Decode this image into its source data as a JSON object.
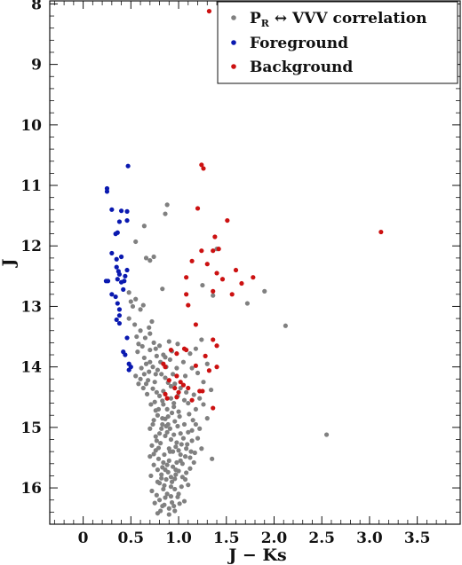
{
  "chart_data": {
    "type": "scatter",
    "xlabel": "J − Ks",
    "ylabel": "J",
    "xlim": [
      -0.35,
      3.95
    ],
    "ylim": [
      16.6,
      7.95
    ],
    "y_inverted": true,
    "x_ticks": [
      "0",
      "0.5",
      "1.0",
      "1.5",
      "2.0",
      "2.5",
      "3.0",
      "3.5"
    ],
    "x_tick_values": [
      0,
      0.5,
      1.0,
      1.5,
      2.0,
      2.5,
      3.0,
      3.5
    ],
    "y_ticks": [
      "8",
      "9",
      "10",
      "11",
      "12",
      "13",
      "14",
      "15",
      "16"
    ],
    "y_tick_values": [
      8,
      9,
      10,
      11,
      12,
      13,
      14,
      15,
      16
    ],
    "legend_position": "top-right",
    "series": [
      {
        "name": "P_R ↔ VVV correlation",
        "name_main": "P",
        "name_sub": "R",
        "name_rest": " ↔ VVV correlation",
        "color": "#808080",
        "points": [
          [
            0.88,
            11.32
          ],
          [
            0.86,
            11.47
          ],
          [
            0.64,
            11.67
          ],
          [
            0.55,
            11.93
          ],
          [
            0.66,
            12.2
          ],
          [
            0.74,
            12.18
          ],
          [
            0.7,
            12.24
          ],
          [
            0.83,
            12.71
          ],
          [
            0.48,
            12.77
          ],
          [
            0.55,
            12.88
          ],
          [
            0.52,
            13.0
          ],
          [
            0.6,
            13.05
          ],
          [
            0.48,
            13.2
          ],
          [
            0.72,
            13.25
          ],
          [
            0.69,
            13.35
          ],
          [
            0.56,
            13.5
          ],
          [
            0.58,
            13.62
          ],
          [
            0.62,
            13.66
          ],
          [
            0.7,
            13.72
          ],
          [
            0.74,
            13.6
          ],
          [
            0.76,
            13.7
          ],
          [
            0.8,
            13.65
          ],
          [
            0.84,
            13.8
          ],
          [
            0.64,
            13.85
          ],
          [
            0.7,
            13.92
          ],
          [
            0.73,
            14.0
          ],
          [
            0.78,
            14.05
          ],
          [
            0.82,
            14.12
          ],
          [
            0.55,
            14.15
          ],
          [
            0.6,
            14.2
          ],
          [
            0.66,
            14.28
          ],
          [
            0.75,
            14.25
          ],
          [
            0.92,
            14.32
          ],
          [
            1.02,
            14.35
          ],
          [
            1.08,
            14.42
          ],
          [
            0.8,
            14.48
          ],
          [
            0.83,
            14.56
          ],
          [
            1.1,
            14.6
          ],
          [
            1.18,
            14.7
          ],
          [
            1.24,
            13.55
          ],
          [
            1.12,
            13.78
          ],
          [
            1.3,
            13.95
          ],
          [
            1.14,
            14.02
          ],
          [
            1.26,
            14.25
          ],
          [
            1.34,
            14.38
          ],
          [
            0.88,
            14.7
          ],
          [
            0.95,
            14.66
          ],
          [
            1.0,
            14.74
          ],
          [
            1.35,
            15.52
          ],
          [
            1.4,
            12.05
          ],
          [
            1.25,
            12.65
          ],
          [
            1.36,
            12.82
          ],
          [
            1.72,
            12.95
          ],
          [
            1.9,
            12.75
          ],
          [
            2.12,
            13.32
          ],
          [
            2.55,
            15.12
          ],
          [
            1.06,
            14.55
          ],
          [
            0.92,
            14.52
          ],
          [
            0.99,
            14.48
          ],
          [
            1.16,
            14.46
          ],
          [
            1.22,
            14.52
          ],
          [
            0.73,
            14.36
          ],
          [
            0.68,
            14.22
          ],
          [
            0.64,
            14.12
          ],
          [
            0.69,
            14.08
          ],
          [
            0.86,
            14.18
          ],
          [
            0.96,
            14.28
          ],
          [
            0.94,
            14.12
          ],
          [
            0.98,
            14.02
          ],
          [
            1.05,
            13.92
          ],
          [
            0.91,
            13.88
          ],
          [
            0.87,
            14.0
          ],
          [
            1.07,
            14.15
          ],
          [
            0.9,
            13.58
          ],
          [
            0.99,
            13.62
          ],
          [
            1.18,
            13.7
          ],
          [
            1.2,
            14.1
          ],
          [
            1.26,
            14.62
          ],
          [
            1.15,
            14.88
          ],
          [
            1.22,
            15.02
          ],
          [
            1.3,
            14.85
          ],
          [
            1.24,
            15.35
          ],
          [
            1.17,
            15.42
          ],
          [
            1.12,
            15.68
          ],
          [
            1.1,
            15.95
          ],
          [
            1.06,
            16.22
          ],
          [
            1.0,
            16.1
          ],
          [
            0.95,
            16.3
          ],
          [
            0.9,
            16.34
          ],
          [
            0.85,
            16.28
          ],
          [
            0.8,
            16.2
          ],
          [
            0.75,
            16.25
          ],
          [
            0.72,
            16.05
          ],
          [
            0.78,
            15.9
          ],
          [
            0.82,
            15.78
          ],
          [
            0.74,
            15.62
          ],
          [
            0.7,
            15.48
          ],
          [
            0.72,
            15.3
          ],
          [
            0.76,
            15.15
          ],
          [
            0.7,
            15.02
          ],
          [
            0.74,
            14.88
          ],
          [
            0.78,
            14.8
          ],
          [
            0.83,
            14.95
          ],
          [
            0.88,
            15.08
          ],
          [
            0.92,
            15.2
          ],
          [
            0.97,
            15.32
          ],
          [
            1.02,
            15.45
          ],
          [
            1.04,
            15.6
          ],
          [
            1.0,
            15.72
          ],
          [
            0.96,
            15.85
          ],
          [
            0.92,
            15.98
          ],
          [
            0.88,
            16.1
          ],
          [
            0.84,
            16.02
          ],
          [
            0.8,
            15.92
          ],
          [
            0.86,
            15.7
          ],
          [
            0.9,
            15.55
          ],
          [
            0.94,
            15.4
          ],
          [
            0.98,
            15.25
          ],
          [
            1.02,
            15.1
          ],
          [
            1.06,
            14.95
          ],
          [
            1.1,
            15.08
          ],
          [
            1.14,
            15.22
          ],
          [
            1.08,
            15.35
          ],
          [
            1.04,
            15.82
          ],
          [
            0.99,
            16.15
          ],
          [
            0.93,
            16.24
          ],
          [
            0.87,
            15.86
          ],
          [
            0.83,
            15.66
          ],
          [
            0.79,
            15.52
          ],
          [
            0.76,
            15.38
          ],
          [
            0.81,
            15.26
          ],
          [
            0.86,
            15.14
          ],
          [
            0.91,
            15.02
          ],
          [
            0.96,
            14.9
          ],
          [
            1.01,
            14.82
          ],
          [
            0.89,
            14.82
          ],
          [
            0.84,
            14.62
          ],
          [
            0.79,
            14.7
          ],
          [
            0.75,
            14.58
          ],
          [
            0.98,
            15.58
          ],
          [
            1.08,
            15.75
          ],
          [
            1.12,
            15.5
          ],
          [
            1.16,
            15.58
          ],
          [
            1.2,
            15.18
          ],
          [
            0.71,
            15.8
          ],
          [
            0.77,
            16.12
          ],
          [
            0.81,
            16.38
          ],
          [
            0.94,
            15.65
          ],
          [
            0.9,
            15.35
          ],
          [
            0.85,
            15.45
          ],
          [
            0.8,
            15.1
          ],
          [
            0.87,
            14.98
          ],
          [
            0.93,
            14.76
          ],
          [
            0.99,
            14.98
          ],
          [
            1.03,
            15.28
          ],
          [
            1.07,
            15.48
          ],
          [
            0.97,
            15.78
          ],
          [
            0.93,
            15.9
          ],
          [
            0.89,
            15.74
          ],
          [
            0.85,
            15.96
          ],
          [
            0.82,
            15.84
          ],
          [
            0.78,
            15.7
          ],
          [
            0.74,
            15.44
          ],
          [
            0.77,
            15.22
          ],
          [
            0.82,
            15.02
          ],
          [
            0.86,
            14.86
          ],
          [
            0.91,
            15.4
          ],
          [
            0.95,
            15.12
          ],
          [
            1.0,
            15.38
          ],
          [
            1.05,
            15.18
          ],
          [
            1.09,
            15.28
          ],
          [
            1.13,
            15.4
          ],
          [
            0.96,
            16.02
          ],
          [
            1.01,
            16.26
          ],
          [
            0.92,
            16.14
          ],
          [
            0.86,
            16.16
          ],
          [
            0.83,
            16.3
          ],
          [
            0.78,
            16.42
          ],
          [
            0.9,
            16.44
          ],
          [
            0.96,
            16.38
          ],
          [
            1.03,
            15.98
          ],
          [
            1.07,
            15.86
          ],
          [
            0.73,
            14.95
          ],
          [
            0.79,
            15.34
          ],
          [
            0.84,
            15.58
          ],
          [
            0.88,
            15.62
          ],
          [
            0.92,
            15.82
          ],
          [
            0.97,
            15.7
          ],
          [
            1.02,
            15.55
          ],
          [
            0.76,
            14.72
          ],
          [
            0.83,
            14.85
          ],
          [
            0.95,
            14.6
          ],
          [
            0.89,
            14.95
          ],
          [
            1.14,
            15.05
          ],
          [
            1.18,
            14.95
          ],
          [
            1.11,
            14.78
          ],
          [
            0.67,
            14.45
          ],
          [
            0.71,
            14.62
          ],
          [
            0.63,
            14.35
          ],
          [
            0.58,
            14.28
          ],
          [
            0.77,
            14.42
          ],
          [
            0.84,
            14.4
          ],
          [
            0.89,
            14.26
          ],
          [
            0.76,
            14.12
          ],
          [
            0.81,
            13.92
          ],
          [
            0.86,
            13.84
          ],
          [
            0.93,
            13.74
          ],
          [
            0.77,
            13.82
          ],
          [
            0.66,
            13.95
          ],
          [
            0.61,
            14.02
          ],
          [
            0.57,
            13.75
          ],
          [
            0.65,
            13.52
          ],
          [
            0.7,
            13.45
          ],
          [
            0.6,
            13.4
          ],
          [
            0.54,
            13.3
          ],
          [
            0.5,
            12.92
          ],
          [
            0.63,
            12.98
          ]
        ]
      },
      {
        "name": "Foreground",
        "color": "#0a19b0",
        "points": [
          [
            0.47,
            10.68
          ],
          [
            0.25,
            11.05
          ],
          [
            0.25,
            11.1
          ],
          [
            0.3,
            11.4
          ],
          [
            0.4,
            11.42
          ],
          [
            0.46,
            11.43
          ],
          [
            0.46,
            11.58
          ],
          [
            0.38,
            11.6
          ],
          [
            0.36,
            11.78
          ],
          [
            0.34,
            11.8
          ],
          [
            0.3,
            12.12
          ],
          [
            0.4,
            12.18
          ],
          [
            0.35,
            12.35
          ],
          [
            0.46,
            12.4
          ],
          [
            0.38,
            12.47
          ],
          [
            0.44,
            12.5
          ],
          [
            0.24,
            12.58
          ],
          [
            0.36,
            12.55
          ],
          [
            0.4,
            12.6
          ],
          [
            0.42,
            12.72
          ],
          [
            0.3,
            12.8
          ],
          [
            0.34,
            12.84
          ],
          [
            0.36,
            12.95
          ],
          [
            0.38,
            13.05
          ],
          [
            0.38,
            13.15
          ],
          [
            0.35,
            13.22
          ],
          [
            0.38,
            13.28
          ],
          [
            0.46,
            13.52
          ],
          [
            0.42,
            13.75
          ],
          [
            0.44,
            13.8
          ],
          [
            0.48,
            13.95
          ],
          [
            0.5,
            14.0
          ],
          [
            0.48,
            14.05
          ],
          [
            0.26,
            12.58
          ],
          [
            0.37,
            12.42
          ],
          [
            0.43,
            12.58
          ],
          [
            0.35,
            12.22
          ]
        ]
      },
      {
        "name": "Background",
        "color": "#cc1111",
        "points": [
          [
            1.32,
            8.12
          ],
          [
            1.24,
            10.66
          ],
          [
            1.26,
            10.72
          ],
          [
            1.2,
            11.38
          ],
          [
            1.51,
            11.58
          ],
          [
            3.12,
            11.77
          ],
          [
            1.38,
            11.85
          ],
          [
            1.42,
            12.05
          ],
          [
            1.36,
            12.08
          ],
          [
            1.24,
            12.08
          ],
          [
            1.14,
            12.25
          ],
          [
            1.3,
            12.3
          ],
          [
            1.6,
            12.4
          ],
          [
            1.4,
            12.45
          ],
          [
            1.78,
            12.52
          ],
          [
            1.08,
            12.52
          ],
          [
            1.46,
            12.55
          ],
          [
            1.66,
            12.62
          ],
          [
            1.36,
            12.75
          ],
          [
            1.56,
            12.8
          ],
          [
            1.08,
            12.8
          ],
          [
            1.1,
            12.98
          ],
          [
            1.18,
            13.3
          ],
          [
            1.36,
            13.55
          ],
          [
            1.4,
            13.65
          ],
          [
            1.06,
            13.7
          ],
          [
            1.28,
            13.82
          ],
          [
            0.92,
            13.72
          ],
          [
            0.98,
            13.78
          ],
          [
            1.18,
            13.98
          ],
          [
            1.4,
            14.0
          ],
          [
            1.32,
            14.06
          ],
          [
            0.84,
            13.95
          ],
          [
            0.98,
            14.15
          ],
          [
            1.02,
            14.25
          ],
          [
            0.9,
            14.22
          ],
          [
            0.96,
            14.35
          ],
          [
            1.05,
            14.3
          ],
          [
            1.1,
            14.35
          ],
          [
            1.22,
            14.4
          ],
          [
            1.0,
            14.42
          ],
          [
            1.25,
            14.4
          ],
          [
            0.86,
            14.45
          ],
          [
            0.98,
            14.5
          ],
          [
            0.88,
            14.52
          ],
          [
            1.36,
            14.68
          ],
          [
            1.14,
            14.55
          ],
          [
            1.08,
            13.72
          ],
          [
            0.86,
            14.0
          ]
        ]
      }
    ]
  }
}
